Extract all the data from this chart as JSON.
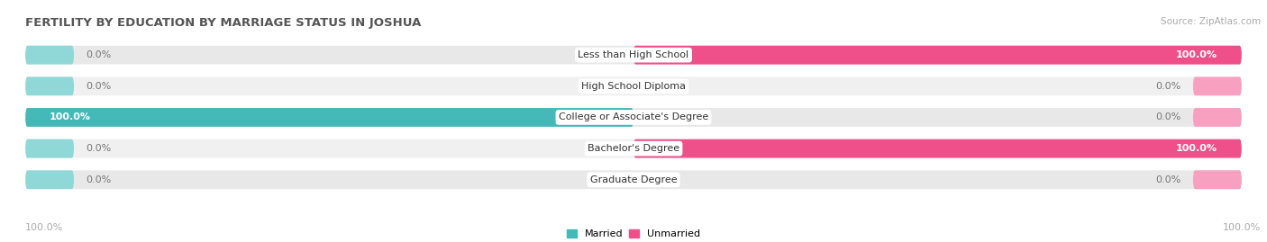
{
  "title": "FERTILITY BY EDUCATION BY MARRIAGE STATUS IN JOSHUA",
  "source": "Source: ZipAtlas.com",
  "categories": [
    "Less than High School",
    "High School Diploma",
    "College or Associate's Degree",
    "Bachelor's Degree",
    "Graduate Degree"
  ],
  "married_values": [
    0.0,
    0.0,
    100.0,
    0.0,
    0.0
  ],
  "unmarried_values": [
    100.0,
    0.0,
    0.0,
    100.0,
    0.0
  ],
  "married_color": "#45b8b8",
  "married_stub_color": "#90d8d8",
  "unmarried_color": "#f0508a",
  "unmarried_stub_color": "#f8a0c0",
  "bar_bg_color": "#e8e8e8",
  "bar_bg_color2": "#f0f0f0",
  "figsize": [
    14.06,
    2.69
  ],
  "dpi": 100,
  "legend_married": "Married",
  "legend_unmarried": "Unmarried",
  "bg_color": "#ffffff",
  "title_fontsize": 9.5,
  "label_fontsize": 8.0,
  "bar_label_fontsize": 8.0,
  "source_fontsize": 7.5,
  "stub_pct": 8,
  "bar_gap": 0.12,
  "bar_height": 0.72
}
